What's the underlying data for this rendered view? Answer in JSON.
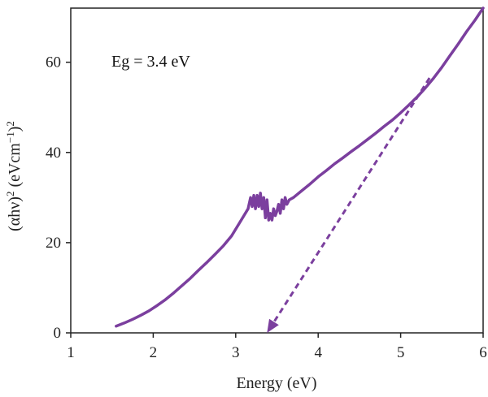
{
  "chart_data": {
    "type": "line",
    "xlabel": "Energy (eV)",
    "ylabel_parts": [
      "(αhν)",
      "2",
      " (eVcm",
      "−1",
      ")",
      "2"
    ],
    "annotation": "Eg = 3.4 eV",
    "xlim": [
      1,
      6
    ],
    "ylim": [
      0,
      72
    ],
    "x_ticks": [
      1,
      2,
      3,
      4,
      5,
      6
    ],
    "y_ticks": [
      0,
      20,
      40,
      60
    ],
    "grid": false,
    "colors": {
      "line": "#7b3f9e",
      "axis": "#222222"
    },
    "series": [
      {
        "x": [
          1.55,
          1.65,
          1.75,
          1.85,
          1.95,
          2.05,
          2.15,
          2.25,
          2.35,
          2.45,
          2.55,
          2.65,
          2.75,
          2.85,
          2.95,
          3.05,
          3.1,
          3.15,
          3.18,
          3.2,
          3.22,
          3.24,
          3.26,
          3.28,
          3.3,
          3.32,
          3.34,
          3.36,
          3.38,
          3.4,
          3.42,
          3.44,
          3.46,
          3.48,
          3.5,
          3.52,
          3.54,
          3.56,
          3.58,
          3.6,
          3.62,
          3.65,
          3.7,
          3.8,
          3.9,
          4.0,
          4.1,
          4.2,
          4.3,
          4.4,
          4.5,
          4.6,
          4.7,
          4.8,
          4.9,
          5.0,
          5.1,
          5.2,
          5.3,
          5.4,
          5.5,
          5.6,
          5.7,
          5.8,
          5.9,
          6.0
        ],
        "y": [
          1.5,
          2.2,
          3.0,
          3.9,
          4.9,
          6.1,
          7.4,
          8.9,
          10.5,
          12.1,
          13.9,
          15.6,
          17.4,
          19.3,
          21.5,
          24.5,
          26.0,
          27.5,
          30.0,
          28.0,
          30.5,
          27.5,
          30.5,
          28.0,
          31.0,
          27.5,
          30.0,
          25.5,
          29.5,
          25.0,
          26.5,
          25.0,
          27.5,
          26.0,
          27.0,
          28.5,
          26.5,
          29.5,
          27.5,
          30.0,
          28.5,
          29.5,
          30.0,
          31.5,
          33.0,
          34.6,
          36.0,
          37.5,
          38.8,
          40.2,
          41.5,
          42.9,
          44.3,
          45.8,
          47.2,
          48.8,
          50.5,
          52.3,
          54.3,
          56.5,
          58.9,
          61.5,
          64.1,
          66.8,
          69.3,
          72.0
        ]
      }
    ],
    "tangent": {
      "x": [
        5.35,
        3.38
      ],
      "y": [
        56.5,
        0
      ]
    }
  }
}
